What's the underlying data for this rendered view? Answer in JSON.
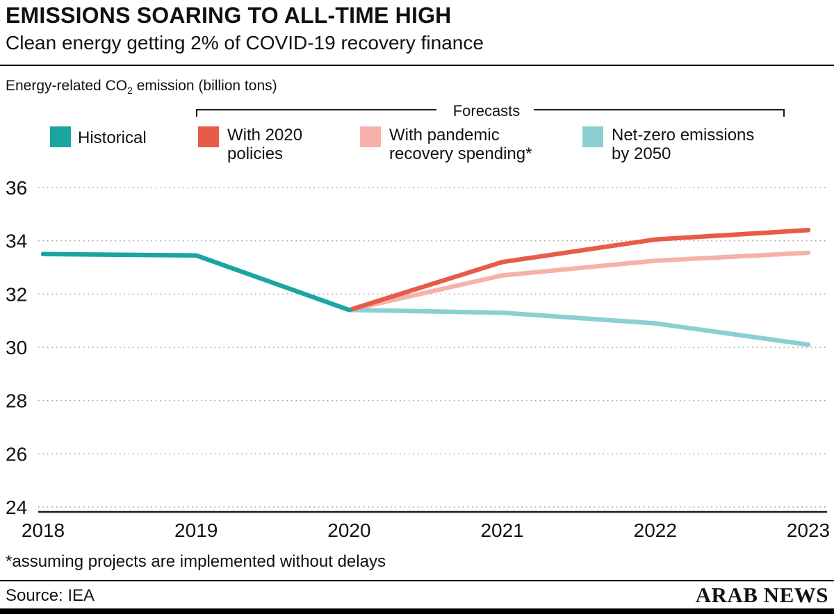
{
  "header": {
    "title": "EMISSIONS SOARING TO ALL-TIME HIGH",
    "subtitle": "Clean energy getting 2% of COVID-19 recovery finance"
  },
  "axis_note": {
    "prefix": "Energy-related CO",
    "sub": "2",
    "suffix": " emission (billion tons)"
  },
  "legend": {
    "forecasts_label": "Forecasts",
    "items": [
      {
        "label_line1": "Historical",
        "label_line2": "",
        "color": "#1AA5A2"
      },
      {
        "label_line1": "With 2020",
        "label_line2": "policies",
        "color": "#E65C49"
      },
      {
        "label_line1": "With pandemic",
        "label_line2": "recovery spending*",
        "color": "#F5B2AB"
      },
      {
        "label_line1": "Net-zero emissions",
        "label_line2": "by 2050",
        "color": "#8CCFD3"
      }
    ]
  },
  "chart_data": {
    "type": "line",
    "title": "",
    "xlabel": "",
    "ylabel": "Energy-related CO2 emission (billion tons)",
    "xlim": [
      2018,
      2023
    ],
    "ylim": [
      24,
      36
    ],
    "xticks": [
      2018,
      2019,
      2020,
      2021,
      2022,
      2023
    ],
    "yticks": [
      24,
      26,
      28,
      30,
      32,
      34,
      36
    ],
    "grid": "horizontal-dotted",
    "legend_position": "top",
    "series": [
      {
        "name": "Historical",
        "color": "#1AA5A2",
        "points": [
          [
            2018,
            33.5
          ],
          [
            2019,
            33.45
          ],
          [
            2020,
            31.4
          ]
        ]
      },
      {
        "name": "With 2020 policies",
        "color": "#E65C49",
        "points": [
          [
            2020,
            31.4
          ],
          [
            2021,
            33.2
          ],
          [
            2022,
            34.05
          ],
          [
            2023,
            34.4
          ]
        ]
      },
      {
        "name": "With pandemic recovery spending*",
        "color": "#F5B2AB",
        "points": [
          [
            2020,
            31.4
          ],
          [
            2021,
            32.7
          ],
          [
            2022,
            33.25
          ],
          [
            2023,
            33.55
          ]
        ]
      },
      {
        "name": "Net-zero emissions by 2050",
        "color": "#8CCFD3",
        "points": [
          [
            2020,
            31.4
          ],
          [
            2021,
            31.3
          ],
          [
            2022,
            30.9
          ],
          [
            2023,
            30.1
          ]
        ]
      }
    ]
  },
  "footnote": "*assuming projects are implemented without delays",
  "footer": {
    "source": "Source: IEA",
    "brand": "ARAB NEWS"
  }
}
